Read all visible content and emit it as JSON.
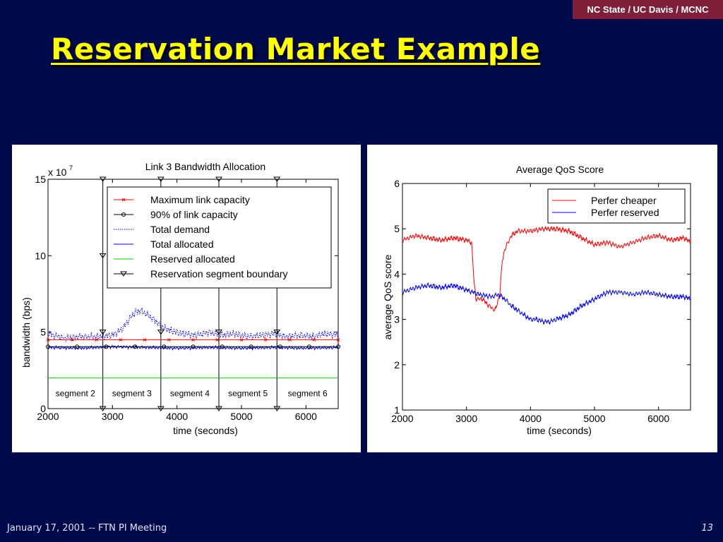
{
  "header": {
    "badge": "NC State / UC Davis / MCNC",
    "title": "Reservation Market Example"
  },
  "footer": {
    "left": "January 17, 2001 -- FTN PI Meeting",
    "page": "13"
  },
  "colors": {
    "background": "#000a4a",
    "title": "#ffff00",
    "badge": "#7f1f3a",
    "red": "#ff0000",
    "blue": "#0000ff",
    "green": "#00cc00"
  },
  "chart_data": [
    {
      "type": "line",
      "title": "Link 3 Bandwidth Allocation",
      "xlabel": "time (seconds)",
      "ylabel": "bandwidth (bps)",
      "exponent_label": "x 10",
      "exponent_power": "7",
      "xlim": [
        2000,
        6500
      ],
      "ylim": [
        0,
        15
      ],
      "x_ticks": [
        2000,
        3000,
        4000,
        5000,
        6000
      ],
      "y_ticks": [
        0,
        5,
        10,
        15
      ],
      "x_tick_labels": [
        "2000",
        "3000",
        "4000",
        "5000",
        "6000"
      ],
      "y_tick_labels": [
        "0",
        "5",
        "10",
        "15"
      ],
      "grid": false,
      "legend_position": "top-right",
      "series": [
        {
          "name": "Maximum link capacity",
          "color": "#ff0000",
          "marker": "x",
          "x": [
            2000,
            6500
          ],
          "y": [
            4.5,
            4.5
          ]
        },
        {
          "name": "90% of link capacity",
          "color": "#000000",
          "marker": "o",
          "x": [
            2000,
            6500
          ],
          "y": [
            4.05,
            4.05
          ]
        },
        {
          "name": "Total demand",
          "color": "#0000ff",
          "style": "dotted",
          "x": [
            2000,
            2250,
            2500,
            2750,
            3000,
            3150,
            3250,
            3350,
            3450,
            3550,
            3650,
            3750,
            3900,
            4100,
            4300,
            4500,
            4700,
            4900,
            5100,
            5300,
            5500,
            5700,
            5900,
            6100,
            6300,
            6500
          ],
          "y": [
            4.9,
            4.6,
            4.7,
            4.7,
            4.8,
            5.2,
            5.8,
            6.3,
            6.4,
            6.1,
            5.8,
            5.4,
            5.1,
            4.9,
            4.8,
            5.0,
            4.8,
            4.9,
            4.7,
            4.8,
            4.9,
            4.7,
            4.8,
            4.7,
            4.9,
            4.8
          ]
        },
        {
          "name": "Total allocated",
          "color": "#0000ff",
          "style": "solid",
          "x": [
            2000,
            2500,
            3000,
            3500,
            4000,
            4500,
            5000,
            5500,
            6000,
            6500
          ],
          "y": [
            4.0,
            3.95,
            4.05,
            4.0,
            3.95,
            4.0,
            3.95,
            4.0,
            3.95,
            4.0
          ]
        },
        {
          "name": "Reserved allocated",
          "color": "#00cc00",
          "x": [
            2000,
            6500
          ],
          "y": [
            2.0,
            2.0
          ]
        },
        {
          "name": "Reservation segment boundary",
          "color": "#000000",
          "marker": "v",
          "x": [
            2850,
            3750,
            4650,
            5550
          ],
          "y": [
            0,
            0,
            0,
            0
          ]
        }
      ],
      "segment_labels": [
        "segment 2",
        "segment 3",
        "segment 4",
        "segment 5",
        "segment 6"
      ]
    },
    {
      "type": "line",
      "title": "Average QoS Score",
      "xlabel": "time (seconds)",
      "ylabel": "average QoS score",
      "xlim": [
        2000,
        6500
      ],
      "ylim": [
        1,
        6
      ],
      "x_ticks": [
        2000,
        3000,
        4000,
        5000,
        6000
      ],
      "y_ticks": [
        1,
        2,
        3,
        4,
        5,
        6
      ],
      "x_tick_labels": [
        "2000",
        "3000",
        "4000",
        "5000",
        "6000"
      ],
      "y_tick_labels": [
        "1",
        "2",
        "3",
        "4",
        "5",
        "6"
      ],
      "grid": false,
      "legend_position": "top-right",
      "series": [
        {
          "name": "Perfer cheaper",
          "color": "#ff0000",
          "x": [
            2000,
            2200,
            2400,
            2600,
            2800,
            3000,
            3080,
            3120,
            3150,
            3250,
            3350,
            3450,
            3520,
            3560,
            3600,
            3700,
            3800,
            4000,
            4200,
            4400,
            4600,
            4800,
            5000,
            5200,
            5400,
            5600,
            5800,
            6000,
            6200,
            6400,
            6500
          ],
          "y": [
            4.75,
            4.85,
            4.8,
            4.75,
            4.8,
            4.75,
            4.7,
            3.8,
            3.45,
            3.45,
            3.3,
            3.2,
            3.55,
            4.3,
            4.55,
            4.85,
            4.95,
            4.95,
            5.0,
            5.0,
            4.95,
            4.8,
            4.65,
            4.7,
            4.6,
            4.7,
            4.8,
            4.85,
            4.75,
            4.8,
            4.7
          ]
        },
        {
          "name": "Perfer reserved",
          "color": "#0000ff",
          "x": [
            2000,
            2200,
            2400,
            2600,
            2800,
            3000,
            3200,
            3400,
            3500,
            3600,
            3700,
            3800,
            3900,
            4000,
            4100,
            4200,
            4300,
            4400,
            4600,
            4800,
            5000,
            5200,
            5400,
            5600,
            5800,
            6000,
            6200,
            6400,
            6500
          ],
          "y": [
            3.6,
            3.7,
            3.75,
            3.7,
            3.75,
            3.65,
            3.55,
            3.5,
            3.55,
            3.45,
            3.3,
            3.2,
            3.1,
            3.0,
            3.0,
            2.95,
            2.95,
            3.0,
            3.1,
            3.3,
            3.45,
            3.6,
            3.6,
            3.55,
            3.6,
            3.55,
            3.5,
            3.5,
            3.45
          ]
        }
      ]
    }
  ]
}
